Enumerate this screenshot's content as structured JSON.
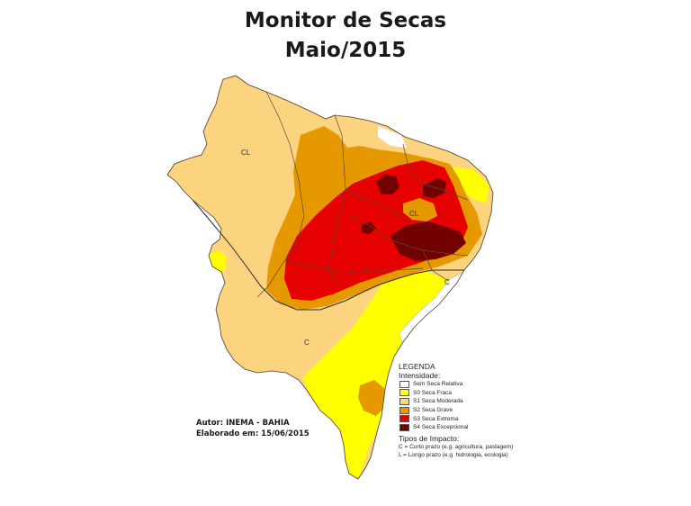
{
  "title": "Monitor de Secas",
  "subtitle": "Maio/2015",
  "map_labels": {
    "cl_north": "CL",
    "cl_center": "CL",
    "c_east": "C",
    "c_south": "C"
  },
  "legend": {
    "title": "LEGENDA",
    "intensity_title": "Intensidade:",
    "items": [
      {
        "label": "Sem Seca Relativa",
        "color": "#ffffff"
      },
      {
        "label": "S0 Seca Fraca",
        "color": "#ffff00"
      },
      {
        "label": "S1 Seca Moderada",
        "color": "#fcd37f"
      },
      {
        "label": "S2 Seca Grave",
        "color": "#e69800"
      },
      {
        "label": "S3 Seca Extrema",
        "color": "#e60000"
      },
      {
        "label": "S4 Seca Excepcional",
        "color": "#730000"
      }
    ],
    "impact_title": "Tipos de Impacto:",
    "impact_items": [
      "C = Curto prazo (e.g. agricultura, pastagem)",
      "L = Longo prazo (e.g. hidrologia, ecologia)"
    ]
  },
  "author": {
    "line1": "Autor: INEMA - BAHIA",
    "line2": "Elaborado em: 15/06/2015"
  },
  "colors": {
    "s0": "#ffff00",
    "s1": "#fcd37f",
    "s2": "#e69800",
    "s3": "#e60000",
    "s4": "#730000",
    "none": "#ffffff",
    "border": "#4a3a2a"
  }
}
